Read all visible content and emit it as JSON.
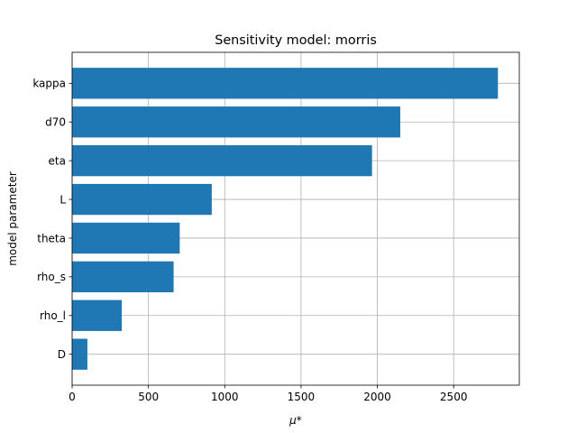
{
  "chart_data": {
    "type": "bar",
    "orientation": "horizontal",
    "title": "Sensitivity model: morris",
    "xlabel": "μ*",
    "ylabel": "model parameter",
    "categories": [
      "kappa",
      "d70",
      "eta",
      "L",
      "theta",
      "rho_s",
      "rho_l",
      "D"
    ],
    "values": [
      2790,
      2150,
      1965,
      915,
      705,
      665,
      325,
      100
    ],
    "xlim": [
      0,
      2930
    ],
    "xticks": [
      0,
      500,
      1000,
      1500,
      2000,
      2500
    ],
    "xtick_labels": [
      "0",
      "500",
      "1000",
      "1500",
      "2000",
      "2500"
    ],
    "grid": true,
    "bar_color": "#1f77b4",
    "grid_color": "#b0b0b0"
  }
}
